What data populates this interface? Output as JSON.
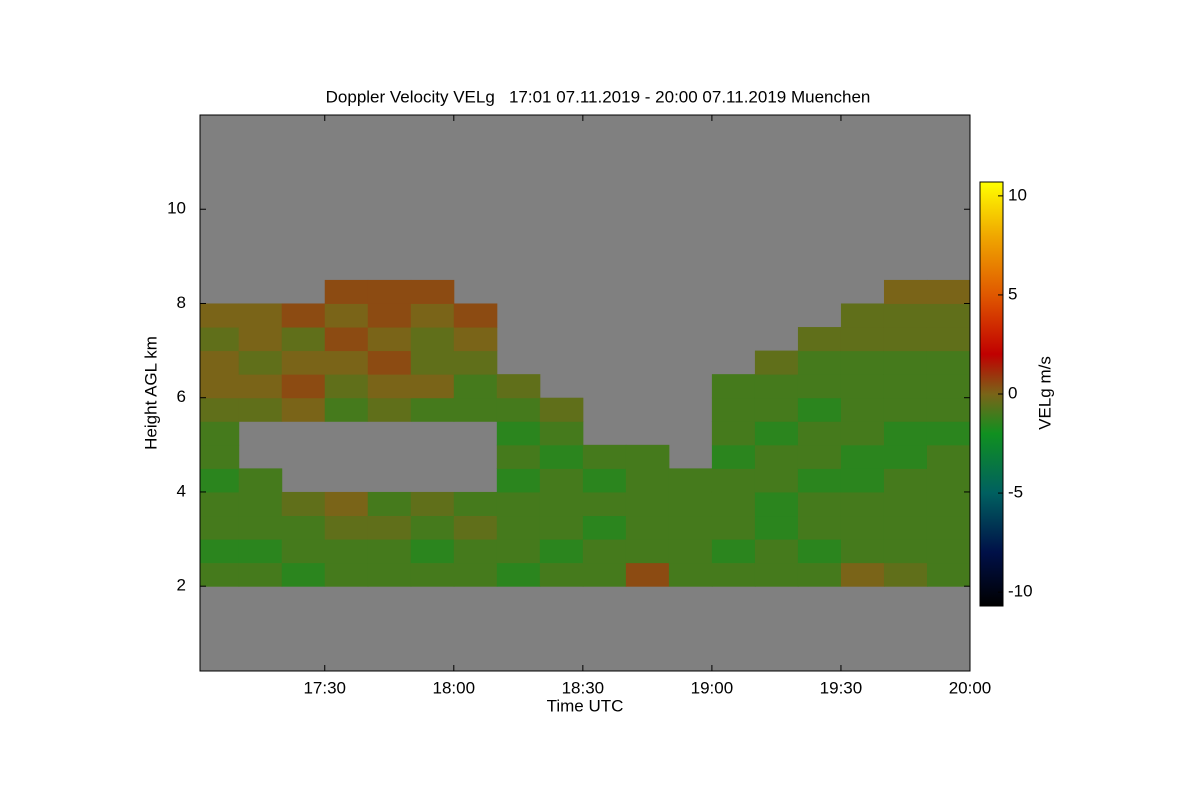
{
  "chart_data": {
    "type": "heatmap",
    "title": "Doppler Velocity VELg   17:01 07.11.2019 - 20:00 07.11.2019 Muenchen",
    "x_label": "Time UTC",
    "y_label": "Height AGL km",
    "colorbar_label": "VELg m/s",
    "background": "#808080",
    "xlim": [
      "17:01",
      "20:00"
    ],
    "xticks": [
      "17:30",
      "18:00",
      "18:30",
      "19:00",
      "19:30",
      "20:00"
    ],
    "ylim": [
      0.2,
      12
    ],
    "yticks": [
      2,
      4,
      6,
      8,
      10
    ],
    "zlim": [
      -10.7,
      10.7
    ],
    "zticks": [
      -10,
      -5,
      0,
      5,
      10
    ],
    "colormap": [
      {
        "value": -10.7,
        "color": "#000000"
      },
      {
        "value": -8,
        "color": "#001048"
      },
      {
        "value": -5,
        "color": "#006060"
      },
      {
        "value": -2,
        "color": "#109020"
      },
      {
        "value": 0,
        "color": "#7a6418"
      },
      {
        "value": 2,
        "color": "#c00000"
      },
      {
        "value": 5,
        "color": "#e05800"
      },
      {
        "value": 8,
        "color": "#f0a800"
      },
      {
        "value": 10.7,
        "color": "#ffff00"
      }
    ],
    "x_edges": [
      "17:01",
      "17:10",
      "17:20",
      "17:30",
      "17:40",
      "17:50",
      "18:00",
      "18:10",
      "18:20",
      "18:30",
      "18:40",
      "18:50",
      "19:00",
      "19:10",
      "19:20",
      "19:30",
      "19:40",
      "19:50",
      "20:00"
    ],
    "y_edges": [
      2.0,
      2.5,
      3.0,
      3.5,
      4.0,
      4.5,
      5.0,
      5.5,
      6.0,
      6.5,
      7.0,
      7.5,
      8.0,
      8.5
    ],
    "values": [
      [
        -1,
        -1.5,
        -1,
        -1,
        -1.5,
        -1,
        -1,
        -0.5,
        0,
        0,
        -0.5,
        0,
        null
      ],
      [
        -1,
        -1.5,
        -1,
        -1,
        -1,
        null,
        null,
        -0.5,
        0,
        -0.5,
        0,
        0,
        null
      ],
      [
        -1.5,
        -1,
        -1,
        -0.5,
        null,
        null,
        null,
        0,
        0.5,
        0,
        -0.5,
        0.5,
        null
      ],
      [
        -1,
        -1,
        -0.5,
        0,
        null,
        null,
        null,
        -1,
        -0.5,
        0,
        0.5,
        0,
        0.5
      ],
      [
        -1,
        -1,
        -0.5,
        -1,
        null,
        null,
        null,
        -0.5,
        0,
        0.5,
        0,
        0.5,
        0.5
      ],
      [
        -1,
        -1.5,
        -1,
        -0.5,
        null,
        null,
        null,
        -1,
        0,
        -0.5,
        -0.5,
        0,
        0.5
      ],
      [
        -1,
        -1,
        -0.5,
        -1,
        null,
        null,
        null,
        -1,
        -1,
        -0.5,
        0,
        0.5,
        null
      ],
      [
        -1.5,
        -1,
        -1,
        -1,
        -1.5,
        -1,
        -1.5,
        -1,
        -0.5,
        null,
        null,
        null,
        null
      ],
      [
        -1,
        -1.5,
        -1,
        -1,
        -1,
        -1.5,
        -1,
        -0.5,
        null,
        null,
        null,
        null,
        null
      ],
      [
        -1,
        -1,
        -1.5,
        -1,
        -1.5,
        -1,
        null,
        null,
        null,
        null,
        null,
        null,
        null
      ],
      [
        0.5,
        -1,
        -1,
        -1,
        -1,
        -1,
        null,
        null,
        null,
        null,
        null,
        null,
        null
      ],
      [
        -1,
        -1,
        -1,
        -1,
        -1,
        null,
        null,
        null,
        null,
        null,
        null,
        null,
        null
      ],
      [
        -1,
        -1.5,
        -1,
        -1,
        -1,
        -1.5,
        -1,
        -1,
        -1,
        null,
        null,
        null,
        null
      ],
      [
        -1,
        -1,
        -1.5,
        -1.5,
        -1,
        -1,
        -1.5,
        -1,
        -1,
        -0.5,
        null,
        null,
        null
      ],
      [
        -1,
        -1.5,
        -1,
        -1,
        -1.5,
        -1,
        -1,
        -1.5,
        -1,
        -1,
        -0.5,
        null,
        null
      ],
      [
        0,
        -1,
        -1,
        -1,
        -1.5,
        -1.5,
        -1,
        -1,
        -1,
        -1,
        -0.5,
        -0.5,
        null
      ],
      [
        -0.5,
        -1,
        -1,
        -1,
        -1,
        -1.5,
        -1.5,
        -1,
        -1,
        -1,
        -0.5,
        -0.5,
        0
      ],
      [
        -1,
        -1,
        -1,
        -1,
        -1,
        -1,
        -1.5,
        -1,
        -1,
        -1,
        -0.5,
        -0.5,
        0
      ]
    ]
  }
}
